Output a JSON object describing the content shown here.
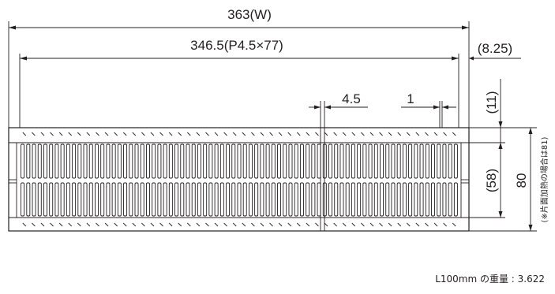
{
  "dimensions": {
    "overall_width": "363(W)",
    "pitch_width": "346.5(P4.5×77)",
    "side_offset": "(8.25)",
    "pitch": "4.5",
    "bar_thickness": "1",
    "top_clearance": "(11)",
    "bar_depth": "(58)",
    "total_height": "80",
    "note": "(※片面加熱の場合は81)"
  },
  "weight_label": "L100mm の重量 : 3.622"
}
